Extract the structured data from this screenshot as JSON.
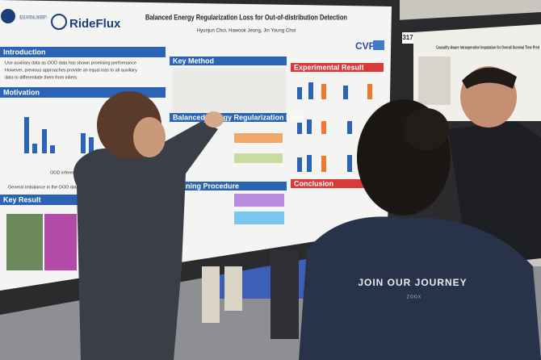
{
  "poster": {
    "affiliation": "SEOUL NATIONAL UNIVERSITY",
    "sponsor": "RideFlux",
    "title": "Balanced Energy Regularization Loss for Out-of-distribution Detection",
    "authors": "Hyunjun Choi, Hawook Jeong, Jin Young Choi",
    "venue": "CVPR",
    "sections": [
      {
        "heading": "Introduction",
        "lines": [
          "Use auxiliary data as OOD data has shown promising performance",
          "However, previous approaches provide an equal loss to all auxiliary",
          "data to differentiate them from inliers"
        ]
      },
      {
        "heading": "Motivation",
        "lines": [
          "OOD inference results",
          "General imbalance in the OOD data"
        ]
      },
      {
        "heading": "Key Result",
        "lines": []
      },
      {
        "heading": "Key Method",
        "lines": []
      },
      {
        "heading": "Balanced Energy Regularization Loss",
        "lines": []
      },
      {
        "heading": "Training Procedure",
        "lines": []
      },
      {
        "heading": "Experimental Result",
        "lines": []
      },
      {
        "heading": "Conclusion",
        "lines": []
      }
    ]
  },
  "neighbor_poster": {
    "number": "317",
    "title": "Causality-Aware Intraoperative Imputation for Overall Survival Time Pred"
  },
  "shirt": {
    "slogan": "JOIN OUR JOURNEY",
    "brand": "ZOOX"
  }
}
